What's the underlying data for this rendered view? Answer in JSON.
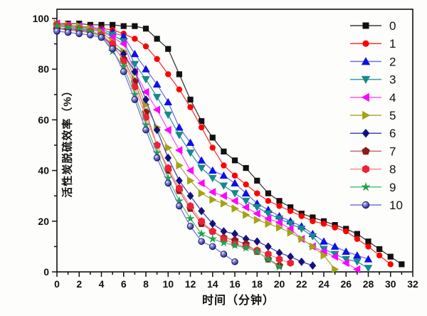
{
  "figure": {
    "xlabel": "时间（分钟）",
    "ylabel": "活性炭脱硫效率（%）"
  },
  "chart_data": {
    "type": "line",
    "title": "",
    "xlabel": "时间（分钟）",
    "ylabel": "活性炭脱硫效率（%）",
    "xlim": [
      0,
      32
    ],
    "ylim": [
      0,
      100
    ],
    "x_ticks": [
      0,
      2,
      4,
      6,
      8,
      10,
      12,
      14,
      16,
      18,
      20,
      22,
      24,
      26,
      28,
      30,
      32
    ],
    "y_ticks": [
      0,
      20,
      40,
      60,
      80,
      100
    ],
    "grid": false,
    "legend_position": "top-right-inside",
    "frame": true,
    "series": [
      {
        "name": "0",
        "marker": "square",
        "marker_color": "#111111",
        "line_color": "#3a3a3a",
        "x": [
          0,
          1,
          2,
          3,
          4,
          5,
          6,
          7,
          8,
          9,
          10,
          11,
          12,
          13,
          14,
          15,
          16,
          17,
          18,
          19,
          20,
          21,
          22,
          23,
          24,
          25,
          26,
          27,
          28,
          29,
          30,
          31
        ],
        "y": [
          98,
          98,
          98,
          97.5,
          97.5,
          97.5,
          97,
          97,
          96,
          92,
          88,
          78,
          68,
          59.5,
          53,
          47.5,
          44,
          41,
          36,
          31,
          28,
          25.5,
          23,
          21.5,
          20,
          18.5,
          17,
          15,
          12,
          9,
          6,
          3
        ]
      },
      {
        "name": "1",
        "marker": "circle",
        "marker_color": "#ff0000",
        "line_color": "#ff3333",
        "x": [
          0,
          1,
          2,
          3,
          4,
          5,
          6,
          7,
          8,
          9,
          10,
          11,
          12,
          13,
          14,
          15,
          16,
          17,
          18,
          19,
          20,
          21,
          22,
          23,
          24,
          25,
          26,
          27,
          28,
          29,
          30
        ],
        "y": [
          97.5,
          97.5,
          97,
          96.5,
          96,
          95.5,
          94,
          92,
          89,
          84,
          78,
          72,
          65,
          57,
          49,
          42,
          38,
          34.5,
          31,
          28,
          26,
          24,
          22,
          20,
          19,
          17.5,
          16,
          13,
          10,
          6.5,
          3
        ]
      },
      {
        "name": "2",
        "marker": "triangle-up",
        "marker_color": "#0f0fe8",
        "line_color": "#7272dd",
        "x": [
          0,
          1,
          2,
          3,
          4,
          5,
          6,
          7,
          8,
          9,
          10,
          11,
          12,
          13,
          14,
          15,
          16,
          17,
          18,
          19,
          20,
          21,
          22,
          23,
          24,
          25,
          26,
          27,
          28
        ],
        "y": [
          97,
          97,
          96.5,
          96,
          95.5,
          94.5,
          93,
          86,
          80,
          74,
          67,
          57,
          51,
          44,
          40,
          38,
          35,
          31,
          27,
          24.5,
          22,
          20,
          18,
          15,
          12,
          10,
          8,
          6.5,
          5
        ]
      },
      {
        "name": "3",
        "marker": "triangle-down",
        "marker_color": "#17898c",
        "line_color": "#2f9ea0",
        "x": [
          0,
          1,
          2,
          3,
          4,
          5,
          6,
          7,
          8,
          9,
          10,
          11,
          12,
          13,
          14,
          15,
          16,
          17,
          18,
          19,
          20,
          21,
          22,
          23,
          24,
          25,
          26,
          27,
          28
        ],
        "y": [
          97,
          96.5,
          96,
          95.5,
          95,
          93.5,
          91,
          82,
          76,
          69,
          62,
          54,
          47,
          41,
          37,
          34,
          31,
          28,
          25.5,
          23,
          21,
          19,
          17,
          14,
          9,
          7,
          5,
          4,
          1.5
        ]
      },
      {
        "name": "4",
        "marker": "triangle-left",
        "marker_color": "#ff00ff",
        "line_color": "#ff55ff",
        "x": [
          0,
          1,
          2,
          3,
          4,
          5,
          6,
          7,
          8,
          9,
          10,
          11,
          12,
          13,
          14,
          15,
          16,
          17,
          18,
          19,
          20,
          21,
          22,
          23,
          24,
          25,
          26,
          27
        ],
        "y": [
          98,
          97.5,
          97,
          96,
          95,
          92.5,
          90,
          79,
          71,
          64,
          56,
          48,
          40,
          35,
          31.5,
          30,
          28,
          25.5,
          23,
          21,
          19.5,
          17,
          13,
          10,
          8,
          6,
          3.5,
          1
        ]
      },
      {
        "name": "5",
        "marker": "triangle-right",
        "marker_color": "#a3a314",
        "line_color": "#abab3c",
        "x": [
          0,
          1,
          2,
          3,
          4,
          5,
          6,
          7,
          8,
          9,
          10,
          11,
          12,
          13,
          14,
          15,
          16,
          17,
          18,
          19,
          20,
          21,
          22,
          23,
          24,
          25
        ],
        "y": [
          98,
          97.5,
          97,
          96,
          94.5,
          91,
          87,
          76,
          66,
          57,
          49,
          42,
          36,
          31,
          28.5,
          27,
          25,
          22.5,
          20.5,
          19,
          17.5,
          15.5,
          13,
          10,
          6.5,
          1
        ]
      },
      {
        "name": "6",
        "marker": "diamond",
        "marker_color": "#12127e",
        "line_color": "#4646b4",
        "x": [
          0,
          1,
          2,
          3,
          4,
          5,
          6,
          7,
          8,
          9,
          10,
          11,
          12,
          13,
          14,
          15,
          16,
          17,
          18,
          19,
          20,
          21,
          22,
          23
        ],
        "y": [
          96,
          96,
          95.5,
          95,
          93.5,
          89.5,
          86,
          79,
          68,
          56,
          45,
          36,
          30,
          24,
          19,
          16,
          15,
          13,
          12,
          10,
          7.5,
          6,
          4,
          2.5
        ]
      },
      {
        "name": "7",
        "marker": "pentagon",
        "marker_color": "#8e1b1b",
        "line_color": "#c46a6a",
        "x": [
          0,
          1,
          2,
          3,
          4,
          5,
          6,
          7,
          8,
          9,
          10,
          11,
          12,
          13,
          14,
          15,
          16,
          17,
          18,
          19,
          20
        ],
        "y": [
          96,
          95.5,
          95,
          94.5,
          93,
          89,
          84,
          75,
          63,
          50,
          40,
          32,
          25,
          19,
          16,
          13.5,
          12.5,
          11,
          8,
          5,
          2.5
        ]
      },
      {
        "name": "8",
        "marker": "hexagon",
        "marker_color": "#ee2135",
        "line_color": "#f58f8f",
        "x": [
          0,
          1,
          2,
          3,
          4,
          5,
          6,
          7,
          8,
          9,
          10,
          11,
          12,
          13,
          14,
          15,
          16,
          17,
          18,
          19,
          20,
          21
        ],
        "y": [
          97.5,
          97,
          96,
          95,
          93.5,
          90,
          83,
          73,
          61,
          50,
          41,
          33,
          26,
          20,
          16,
          13,
          11,
          10,
          8.5,
          7,
          5,
          3.5
        ]
      },
      {
        "name": "9",
        "marker": "star",
        "marker_color": "#1ca24b",
        "line_color": "#56bd7e",
        "x": [
          0,
          1,
          2,
          3,
          4,
          5,
          6,
          7,
          8,
          9,
          10,
          11,
          12,
          13,
          14,
          15,
          16,
          17,
          18,
          19,
          20
        ],
        "y": [
          97,
          96.5,
          96,
          95,
          93,
          87,
          81,
          70,
          58,
          47,
          37,
          28,
          21,
          15,
          13,
          11.5,
          10.5,
          9.5,
          8,
          5,
          2
        ]
      },
      {
        "name": "10",
        "marker": "sphere",
        "marker_color": "#15157f",
        "line_color": "#7373d9",
        "x": [
          0,
          1,
          2,
          3,
          4,
          5,
          6,
          7,
          8,
          9,
          10,
          11,
          12,
          13,
          14,
          15,
          16
        ],
        "y": [
          95,
          94.5,
          94,
          93.5,
          92.5,
          88,
          79,
          68,
          56,
          45,
          35,
          26,
          18,
          12,
          10,
          7,
          4
        ]
      }
    ]
  }
}
